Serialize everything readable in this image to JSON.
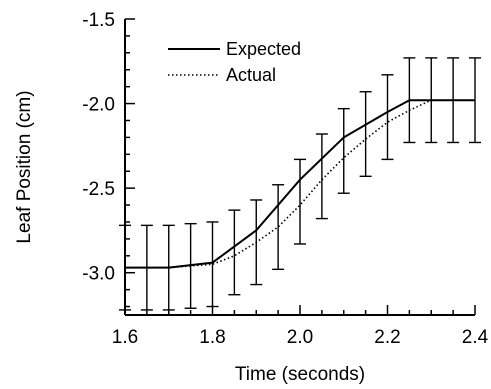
{
  "chart_data": {
    "type": "line",
    "title": "",
    "xlabel": "Time (seconds)",
    "ylabel": "Leaf Position (cm)",
    "xlim": [
      1.6,
      2.4
    ],
    "ylim": [
      -3.25,
      -1.5
    ],
    "x_ticks": [
      1.6,
      1.8,
      2.0,
      2.2,
      2.4
    ],
    "x_tick_labels": [
      "1.6",
      "1.8",
      "2.0",
      "2.2",
      "2.4"
    ],
    "y_ticks": [
      -1.5,
      -2.0,
      -2.5,
      -3.0
    ],
    "y_tick_labels": [
      "-1.5",
      "-2.0",
      "-2.5",
      "-3.0"
    ],
    "grid": false,
    "legend_position": "top-left",
    "series": [
      {
        "name": "Expected",
        "style": "solid",
        "color": "#000000",
        "x": [
          1.6,
          1.7,
          1.8,
          1.9,
          2.0,
          2.1,
          2.2,
          2.25,
          2.4
        ],
        "y": [
          -2.97,
          -2.97,
          -2.94,
          -2.75,
          -2.45,
          -2.2,
          -2.05,
          -1.98,
          -1.98
        ]
      },
      {
        "name": "Actual",
        "style": "dotted",
        "color": "#000000",
        "x": [
          1.6,
          1.7,
          1.75,
          1.8,
          1.85,
          1.9,
          1.95,
          2.0,
          2.05,
          2.1,
          2.15,
          2.2,
          2.25,
          2.3,
          2.35,
          2.4
        ],
        "y": [
          -2.97,
          -2.97,
          -2.96,
          -2.95,
          -2.9,
          -2.82,
          -2.73,
          -2.6,
          -2.45,
          -2.32,
          -2.21,
          -2.11,
          -2.04,
          -1.98,
          -1.98,
          -1.98
        ]
      }
    ],
    "error_bars": {
      "x": [
        1.6,
        1.65,
        1.7,
        1.75,
        1.8,
        1.85,
        1.9,
        1.95,
        2.0,
        2.05,
        2.1,
        2.15,
        2.2,
        2.25,
        2.3,
        2.35,
        2.4
      ],
      "y": [
        -2.97,
        -2.97,
        -2.97,
        -2.96,
        -2.95,
        -2.88,
        -2.82,
        -2.73,
        -2.58,
        -2.43,
        -2.28,
        -2.18,
        -2.08,
        -1.98,
        -1.98,
        -1.98,
        -1.98
      ],
      "err": [
        0.25,
        0.25,
        0.25,
        0.25,
        0.25,
        0.25,
        0.25,
        0.25,
        0.25,
        0.25,
        0.25,
        0.25,
        0.25,
        0.25,
        0.25,
        0.25,
        0.25
      ]
    }
  }
}
